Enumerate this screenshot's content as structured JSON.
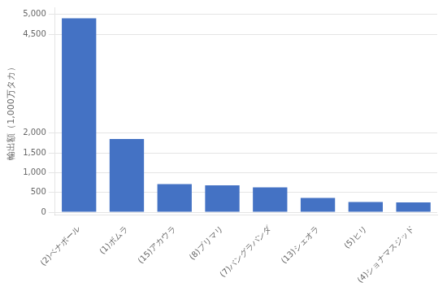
{
  "chart_data": {
    "type": "bar",
    "categories": [
      "(2)ベナポール",
      "(1)ボムラ",
      "(15)アカウラ",
      "(8)ブリマリ",
      "(7)バングラバンダ",
      "(13)シェオラ",
      "(5)ヒリ",
      "(4)ショナマスジッド"
    ],
    "values": [
      4900,
      1850,
      710,
      680,
      630,
      360,
      260,
      245
    ],
    "color": "#4472C4",
    "ylabel": "輸出額（1,000万タカ）",
    "ylim": [
      -80,
      5180
    ],
    "yticks": [
      0,
      500,
      {
        "value": 1000,
        "label": "1,000"
      },
      {
        "value": 1500,
        "label": "1,500"
      },
      {
        "value": 2000,
        "label": "2,000"
      },
      {
        "value": 4500,
        "label": "4,500"
      },
      {
        "value": 5000,
        "label": "5,000"
      }
    ],
    "grid": true
  }
}
